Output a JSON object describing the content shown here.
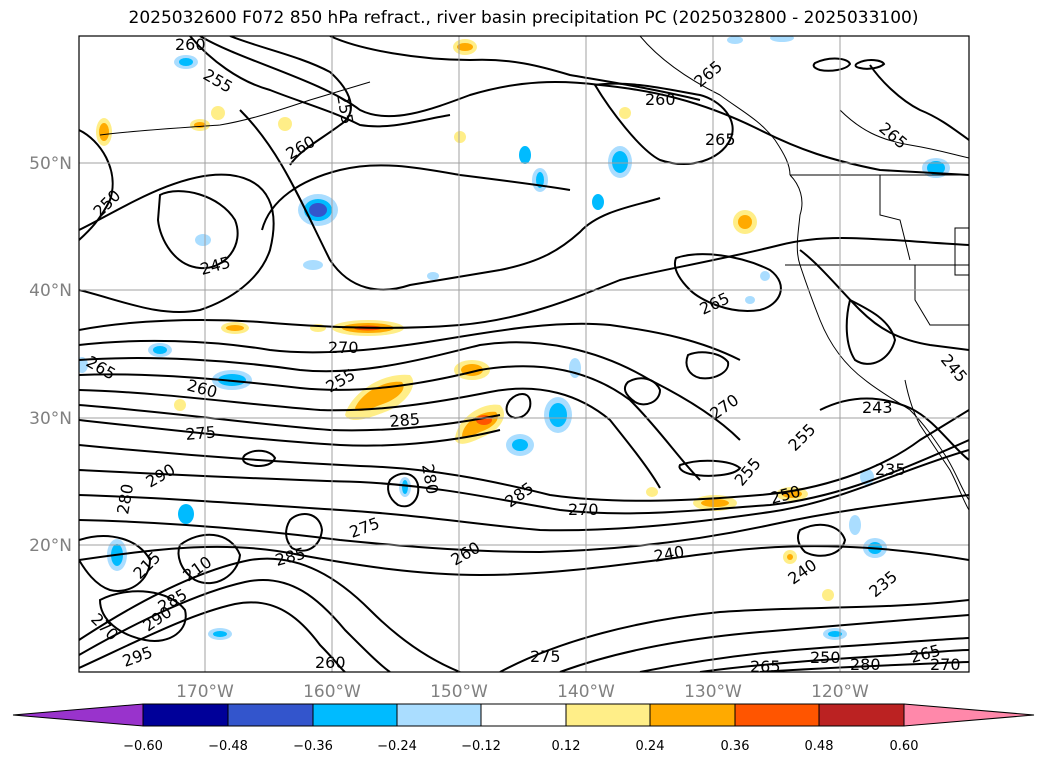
{
  "title": "2025032600 F072 850 hPa refract., river basin precipitation PC (2025032800 - 2025033100)",
  "map": {
    "lat_labels": [
      "50°N",
      "40°N",
      "30°N",
      "20°N"
    ],
    "lon_labels": [
      "170°W",
      "160°W",
      "150°W",
      "140°W",
      "130°W",
      "120°W"
    ],
    "contour_labels": [
      "260",
      "255",
      "255",
      "260",
      "265",
      "265",
      "265",
      "250",
      "260",
      "245",
      "265",
      "270",
      "255",
      "260",
      "275",
      "285",
      "265",
      "270",
      "245",
      "255",
      "243",
      "235",
      "290",
      "280",
      "280",
      "285",
      "270",
      "255",
      "250",
      "240",
      "275",
      "285",
      "260",
      "240",
      "235",
      "215",
      "210",
      "285",
      "290",
      "270",
      "295",
      "260",
      "275",
      "265",
      "250",
      "265",
      "280",
      "270"
    ],
    "colors": {
      "contour": "#000000",
      "coast": "#000000",
      "grid": "#a0a0a0",
      "frame": "#000000"
    }
  },
  "colorbar": {
    "colors": [
      "#9933cc",
      "#000099",
      "#3355cc",
      "#00bbff",
      "#aaddff",
      "#ffffff",
      "#ffee88",
      "#ffaa00",
      "#ff5500",
      "#bb2222",
      "#ff88aa"
    ],
    "tick_labels": [
      "−0.60",
      "−0.48",
      "−0.36",
      "−0.24",
      "−0.12",
      "0.12",
      "0.24",
      "0.36",
      "0.48",
      "0.60"
    ]
  }
}
